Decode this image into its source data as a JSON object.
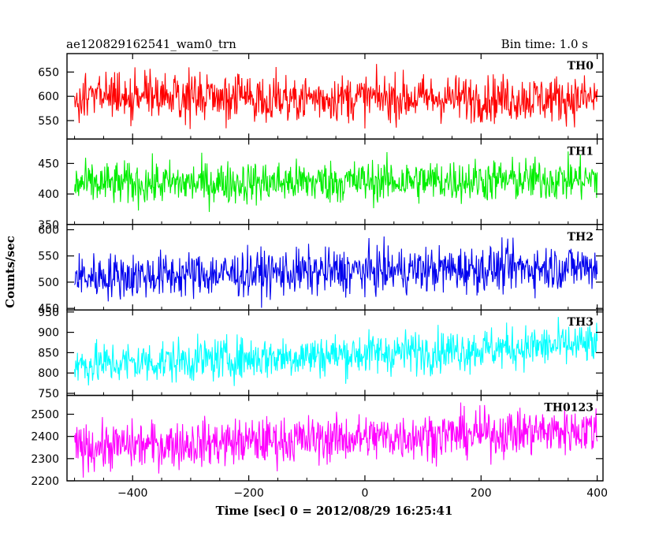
{
  "header": {
    "left_title": "ae120829162541_wam0_trn",
    "right_title": "Bin time: 1.0 s"
  },
  "chart_data": {
    "type": "line",
    "title": "ae120829162541_wam0_trn",
    "subtitle": "Bin time: 1.0 s",
    "xlabel": "Time [sec] 0 = 2012/08/29 16:25:41",
    "ylabel": "Counts/sec",
    "xlim": [
      -513,
      410
    ],
    "x_start": -500,
    "x_end": 400,
    "x_step": 1,
    "x_ticks": [
      -400,
      -200,
      0,
      200,
      400
    ],
    "x_tick_labels": [
      "−400",
      "−200",
      "0",
      "200",
      "400"
    ],
    "grid": false,
    "panels": [
      {
        "name": "TH0",
        "color": "#ff0000",
        "ylim": [
          512,
          688
        ],
        "yticks": [
          550,
          600,
          650
        ],
        "ytick_labels": [
          "550",
          "600",
          "650"
        ],
        "mean": 597,
        "amp": 82,
        "slope": -2
      },
      {
        "name": "TH1",
        "color": "#00ee00",
        "ylim": [
          350,
          490
        ],
        "yticks": [
          350,
          400,
          450
        ],
        "ytick_labels": [
          "350",
          "400",
          "450"
        ],
        "mean": 420,
        "amp": 60,
        "slope": 4
      },
      {
        "name": "TH2",
        "color": "#0000ee",
        "ylim": [
          447,
          610
        ],
        "yticks": [
          450,
          500,
          550,
          600
        ],
        "ytick_labels": [
          "450",
          "500",
          "550",
          "600"
        ],
        "mean": 520,
        "amp": 75,
        "slope": 10
      },
      {
        "name": "TH3",
        "color": "#00ffff",
        "ylim": [
          745,
          955
        ],
        "yticks": [
          750,
          800,
          850,
          900,
          950
        ],
        "ytick_labels": [
          "750",
          "800",
          "850",
          "900",
          "950"
        ],
        "mean": 845,
        "amp": 90,
        "slope": 25
      },
      {
        "name": "TH0123",
        "color": "#ff00ff",
        "ylim": [
          2200,
          2585
        ],
        "yticks": [
          2200,
          2300,
          2400,
          2500
        ],
        "ytick_labels": [
          "2200",
          "2300",
          "2400",
          "2500"
        ],
        "mean": 2390,
        "amp": 180,
        "slope": 40
      }
    ]
  }
}
